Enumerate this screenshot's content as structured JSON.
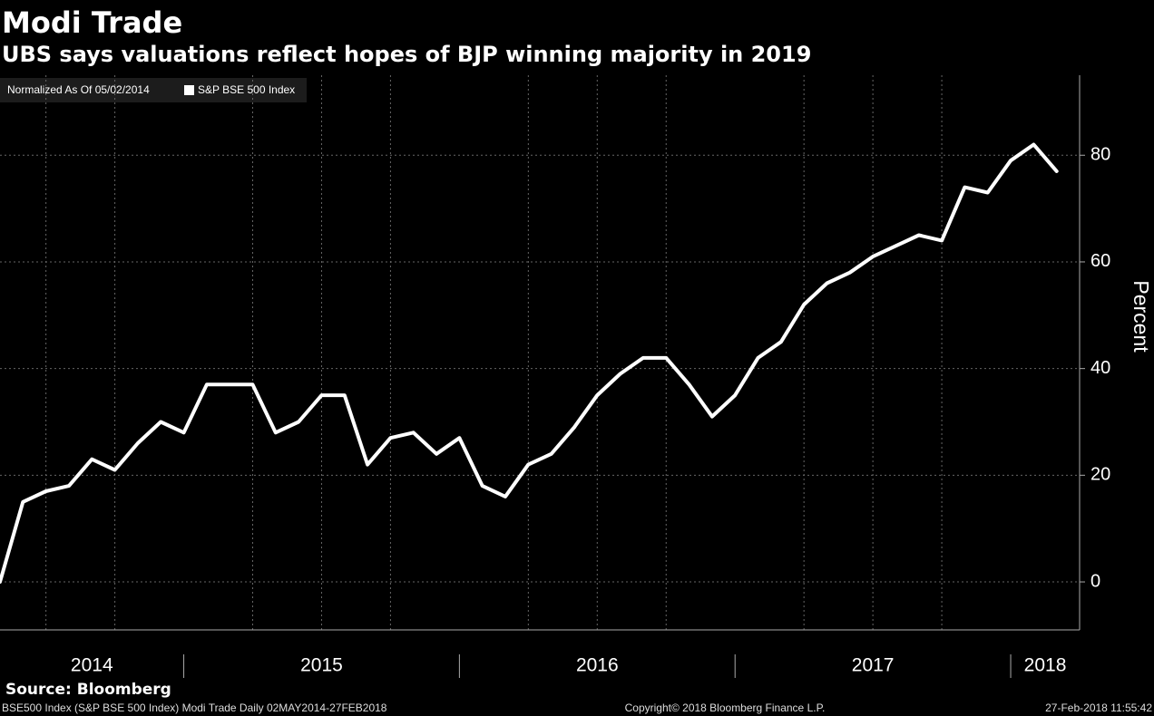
{
  "chart_data": {
    "type": "line",
    "title": "Modi Trade",
    "subtitle": "UBS says valuations reflect hopes of BJP winning majority in 2019",
    "legend_title": "Normalized As Of 05/02/2014",
    "y_label": "Percent",
    "x": [
      "2014-05",
      "2014-06",
      "2014-07",
      "2014-08",
      "2014-09",
      "2014-10",
      "2014-11",
      "2014-12",
      "2015-01",
      "2015-02",
      "2015-03",
      "2015-04",
      "2015-05",
      "2015-06",
      "2015-07",
      "2015-08",
      "2015-09",
      "2015-10",
      "2015-11",
      "2015-12",
      "2016-01",
      "2016-02",
      "2016-03",
      "2016-04",
      "2016-05",
      "2016-06",
      "2016-07",
      "2016-08",
      "2016-09",
      "2016-10",
      "2016-11",
      "2016-12",
      "2017-01",
      "2017-02",
      "2017-03",
      "2017-04",
      "2017-05",
      "2017-06",
      "2017-07",
      "2017-08",
      "2017-09",
      "2017-10",
      "2017-11",
      "2017-12",
      "2018-01",
      "2018-02",
      "2018-03"
    ],
    "series": [
      {
        "name": "S&P BSE 500 Index",
        "color": "#ffffff",
        "values": [
          0,
          15,
          17,
          18,
          23,
          21,
          26,
          30,
          28,
          37,
          37,
          37,
          28,
          30,
          35,
          35,
          22,
          27,
          28,
          24,
          27,
          18,
          16,
          22,
          24,
          29,
          35,
          39,
          42,
          42,
          37,
          31,
          35,
          42,
          45,
          52,
          56,
          58,
          61,
          63,
          65,
          64,
          74,
          73,
          79,
          82,
          77
        ]
      }
    ],
    "xlim": [
      "2014-05",
      "2018-04"
    ],
    "xticks": [
      2014,
      2015,
      2016,
      2017,
      2018
    ],
    "ylim": [
      -9,
      95
    ],
    "yticks": [
      0,
      20,
      40,
      60,
      80
    ],
    "grid": true,
    "source": "Source: Bloomberg",
    "footer_left": "BSE500 Index (S&P BSE 500 Index) Modi Trade  Daily 02MAY2014-27FEB2018",
    "footer_center": "Copyright© 2018 Bloomberg Finance L.P.",
    "footer_right": "27-Feb-2018 11:55:42"
  }
}
